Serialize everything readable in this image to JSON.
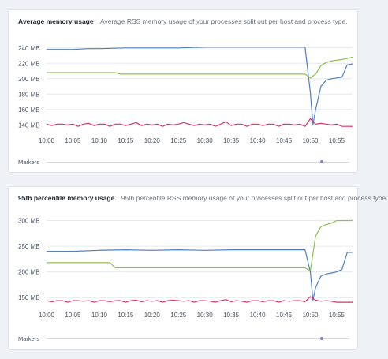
{
  "x_ticks": [
    "10:00",
    "10:05",
    "10:10",
    "10:15",
    "10:20",
    "10:25",
    "10:30",
    "10:35",
    "10:40",
    "10:45",
    "10:50",
    "10:55"
  ],
  "colors": {
    "blue": "#4f7fc0",
    "green": "#8cc152",
    "red": "#d6336c",
    "grid": "#e6e9ed"
  },
  "marker_dot_position": 0.91,
  "cards": [
    {
      "title": "Average memory usage",
      "description": "Average RSS memory usage of your processes split out per host and process type.",
      "markers_label": "Markers"
    },
    {
      "title": "95th percentile memory usage",
      "description": "95th percentile RSS memory usage of your processes split out per host and process type.",
      "markers_label": "Markers"
    }
  ],
  "chart_data": [
    {
      "type": "line",
      "title": "Average memory usage",
      "x_range": [
        "10:00",
        "10:58"
      ],
      "ylim": [
        130,
        250
      ],
      "y_ticks": [
        "240 MB",
        "220 MB",
        "200 MB",
        "180 MB",
        "160 MB",
        "140 MB"
      ],
      "y_tick_values": [
        240,
        220,
        200,
        180,
        160,
        140
      ],
      "grid": true,
      "series": [
        {
          "color": "blue",
          "x": [
            0,
            5,
            8,
            10,
            15,
            20,
            25,
            30,
            35,
            40,
            45,
            48,
            49,
            50,
            50.5,
            51,
            52,
            53,
            54,
            55,
            56,
            57,
            58
          ],
          "y": [
            238,
            238,
            239,
            239,
            240,
            240,
            240,
            241,
            241,
            241,
            241,
            241,
            241,
            182,
            140,
            160,
            190,
            198,
            200,
            201,
            202,
            218,
            219
          ]
        },
        {
          "color": "green",
          "x": [
            0,
            10,
            13,
            14,
            20,
            30,
            40,
            48,
            49,
            50,
            51,
            52,
            53,
            54,
            56,
            58
          ],
          "y": [
            208,
            208,
            208,
            206,
            206,
            206,
            206,
            206,
            206,
            201,
            206,
            217,
            221,
            223,
            225,
            228
          ]
        },
        {
          "color": "red",
          "x": [
            0,
            1,
            2,
            3,
            4,
            5,
            6,
            7,
            8,
            9,
            10,
            11,
            12,
            13,
            14,
            15,
            16,
            17,
            18,
            19,
            20,
            21,
            22,
            23,
            24,
            25,
            26,
            27,
            28,
            29,
            30,
            31,
            32,
            33,
            34,
            35,
            36,
            37,
            38,
            39,
            40,
            41,
            42,
            43,
            44,
            45,
            46,
            47,
            48,
            49,
            50,
            51,
            52,
            53,
            54,
            55,
            56,
            57,
            58
          ],
          "y": [
            141,
            139,
            141,
            141,
            140,
            141,
            138,
            141,
            142,
            139,
            141,
            141,
            138,
            141,
            141,
            139,
            141,
            143,
            139,
            141,
            140,
            141,
            138,
            141,
            140,
            141,
            143,
            141,
            139,
            141,
            140,
            141,
            138,
            141,
            144,
            139,
            141,
            141,
            138,
            141,
            141,
            139,
            141,
            141,
            138,
            141,
            141,
            140,
            141,
            138,
            148,
            141,
            142,
            141,
            140,
            141,
            138,
            138,
            138
          ]
        }
      ]
    },
    {
      "type": "line",
      "title": "95th percentile memory usage",
      "x_range": [
        "10:00",
        "10:58"
      ],
      "ylim": [
        135,
        310
      ],
      "y_ticks": [
        "300 MB",
        "250 MB",
        "200 MB",
        "150 MB"
      ],
      "y_tick_values": [
        300,
        250,
        200,
        150
      ],
      "grid": true,
      "series": [
        {
          "color": "blue",
          "x": [
            0,
            5,
            10,
            15,
            20,
            25,
            30,
            35,
            40,
            45,
            48,
            49,
            50,
            50.5,
            51,
            52,
            53,
            54,
            55,
            56,
            57,
            58
          ],
          "y": [
            240,
            240,
            242,
            243,
            242,
            243,
            242,
            243,
            243,
            243,
            243,
            243,
            200,
            145,
            170,
            192,
            196,
            198,
            200,
            205,
            238,
            238
          ]
        },
        {
          "color": "green",
          "x": [
            0,
            10,
            12,
            13,
            20,
            30,
            40,
            48,
            49,
            50,
            51,
            52,
            53,
            54,
            55,
            56,
            58
          ],
          "y": [
            218,
            218,
            218,
            208,
            208,
            208,
            208,
            208,
            208,
            202,
            270,
            288,
            292,
            295,
            300,
            300,
            300
          ]
        },
        {
          "color": "red",
          "x": [
            0,
            1,
            2,
            3,
            4,
            5,
            6,
            7,
            8,
            9,
            10,
            11,
            12,
            13,
            14,
            15,
            16,
            17,
            18,
            19,
            20,
            21,
            22,
            23,
            24,
            25,
            26,
            27,
            28,
            29,
            30,
            31,
            32,
            33,
            34,
            35,
            36,
            37,
            38,
            39,
            40,
            41,
            42,
            43,
            44,
            45,
            46,
            47,
            48,
            49,
            50,
            51,
            52,
            53,
            54,
            55,
            56,
            57,
            58
          ],
          "y": [
            144,
            142,
            144,
            144,
            141,
            144,
            144,
            143,
            144,
            141,
            144,
            144,
            142,
            144,
            144,
            141,
            144,
            145,
            142,
            144,
            143,
            144,
            141,
            144,
            145,
            144,
            143,
            144,
            141,
            144,
            144,
            143,
            141,
            144,
            146,
            142,
            144,
            143,
            141,
            144,
            144,
            142,
            144,
            144,
            141,
            144,
            143,
            144,
            144,
            142,
            152,
            145,
            143,
            144,
            143,
            141,
            141,
            141,
            141
          ]
        }
      ]
    }
  ]
}
